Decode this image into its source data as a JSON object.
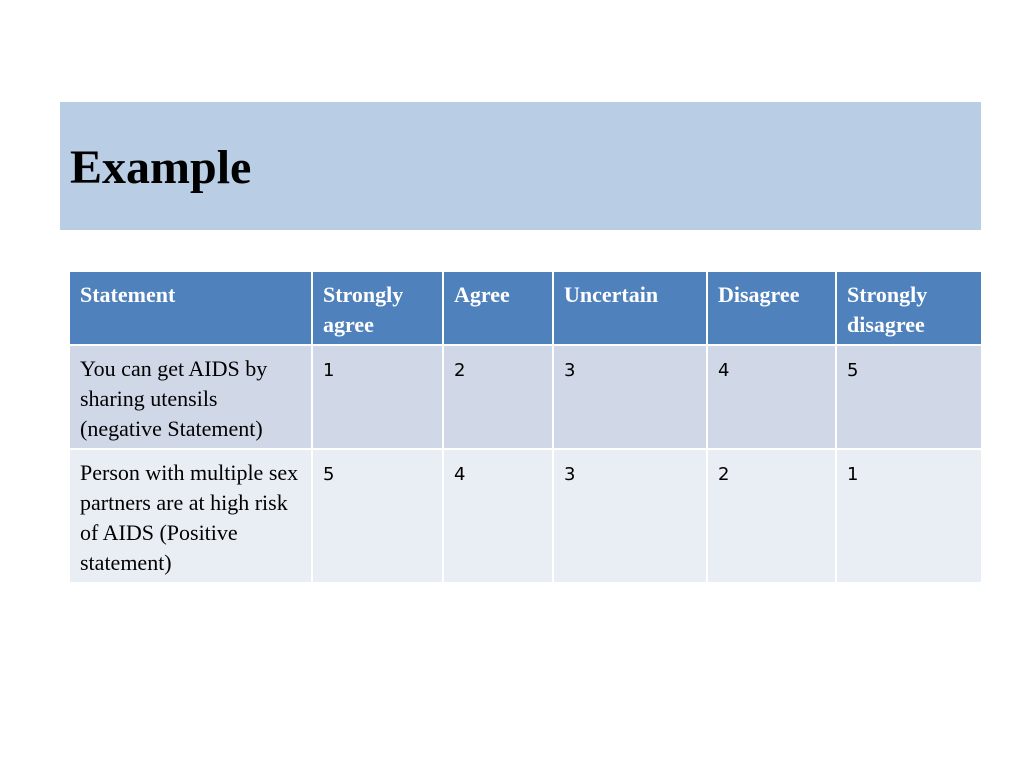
{
  "slide": {
    "title": "Example"
  },
  "table": {
    "headers": [
      "Statement",
      "Strongly agree",
      "Agree",
      "Uncertain",
      "Disagree",
      "Strongly disagree"
    ],
    "rows": [
      {
        "statement": "You can get AIDS by sharing utensils (negative Statement)",
        "scores": [
          "1",
          "2",
          "3",
          "4",
          "5"
        ]
      },
      {
        "statement": "Person with multiple sex partners are at high risk of AIDS (Positive statement)",
        "scores": [
          "5",
          "4",
          "3",
          "2",
          "1"
        ]
      }
    ]
  },
  "colors": {
    "title_band": "#b9cde4",
    "header_fill": "#4f81bd",
    "row_odd": "#d0d8e8",
    "row_even": "#e9edf4"
  }
}
